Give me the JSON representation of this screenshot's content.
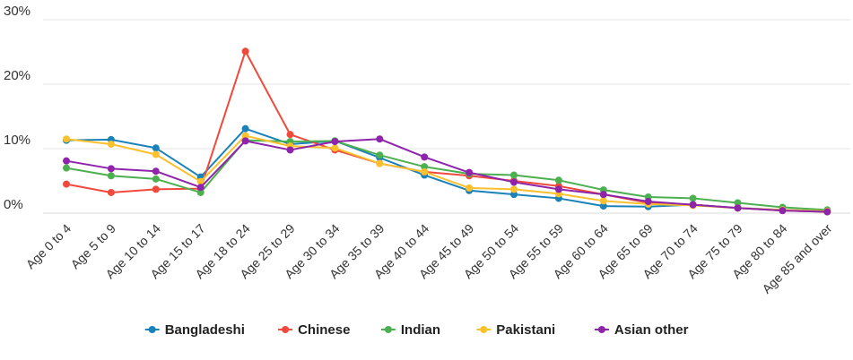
{
  "chart_data": {
    "type": "line",
    "title": "",
    "xlabel": "",
    "ylabel": "",
    "ylim": [
      0,
      30
    ],
    "yticks": [
      "0%",
      "10%",
      "20%",
      "30%"
    ],
    "grid": true,
    "legend_position": "bottom-center",
    "categories": [
      "Age 0 to 4",
      "Age 5 to 9",
      "Age 10 to 14",
      "Age 15 to 17",
      "Age 18 to 24",
      "Age 25 to 29",
      "Age 30 to 34",
      "Age 35 to 39",
      "Age 40 to 44",
      "Age 45 to 49",
      "Age 50 to 54",
      "Age 55 to 59",
      "Age 60 to 64",
      "Age 65 to 69",
      "Age 70 to 74",
      "Age 75 to 79",
      "Age 80 to 84",
      "Age 85 and over"
    ],
    "series": [
      {
        "name": "Bangladeshi",
        "color": "#1a82b8",
        "values": [
          11.3,
          11.4,
          10.1,
          5.6,
          13.1,
          10.7,
          11.2,
          8.6,
          5.9,
          3.5,
          2.9,
          2.3,
          1.1,
          1.0,
          1.3,
          0.8,
          0.5,
          0.3
        ]
      },
      {
        "name": "Chinese",
        "color": "#ef4a3c",
        "values": [
          4.5,
          3.2,
          3.7,
          3.8,
          25.1,
          12.2,
          9.8,
          7.7,
          6.4,
          5.8,
          5.0,
          4.2,
          2.9,
          1.6,
          1.3,
          0.8,
          0.4,
          0.2
        ]
      },
      {
        "name": "Indian",
        "color": "#4caf50",
        "values": [
          7.0,
          5.8,
          5.3,
          3.2,
          11.3,
          11.1,
          11.2,
          9.0,
          7.2,
          6.1,
          5.9,
          5.1,
          3.6,
          2.5,
          2.3,
          1.6,
          0.9,
          0.5
        ]
      },
      {
        "name": "Pakistani",
        "color": "#fbc02d",
        "values": [
          11.5,
          10.7,
          9.1,
          4.9,
          12.0,
          10.4,
          10.1,
          7.7,
          6.4,
          3.9,
          3.7,
          3.0,
          1.9,
          1.4,
          1.2,
          0.8,
          0.5,
          0.3
        ]
      },
      {
        "name": "Asian other",
        "color": "#8e24aa",
        "values": [
          8.1,
          6.9,
          6.5,
          4.0,
          11.2,
          9.8,
          11.1,
          11.5,
          8.7,
          6.3,
          4.8,
          3.7,
          2.9,
          1.8,
          1.3,
          0.8,
          0.4,
          0.2
        ]
      }
    ]
  }
}
